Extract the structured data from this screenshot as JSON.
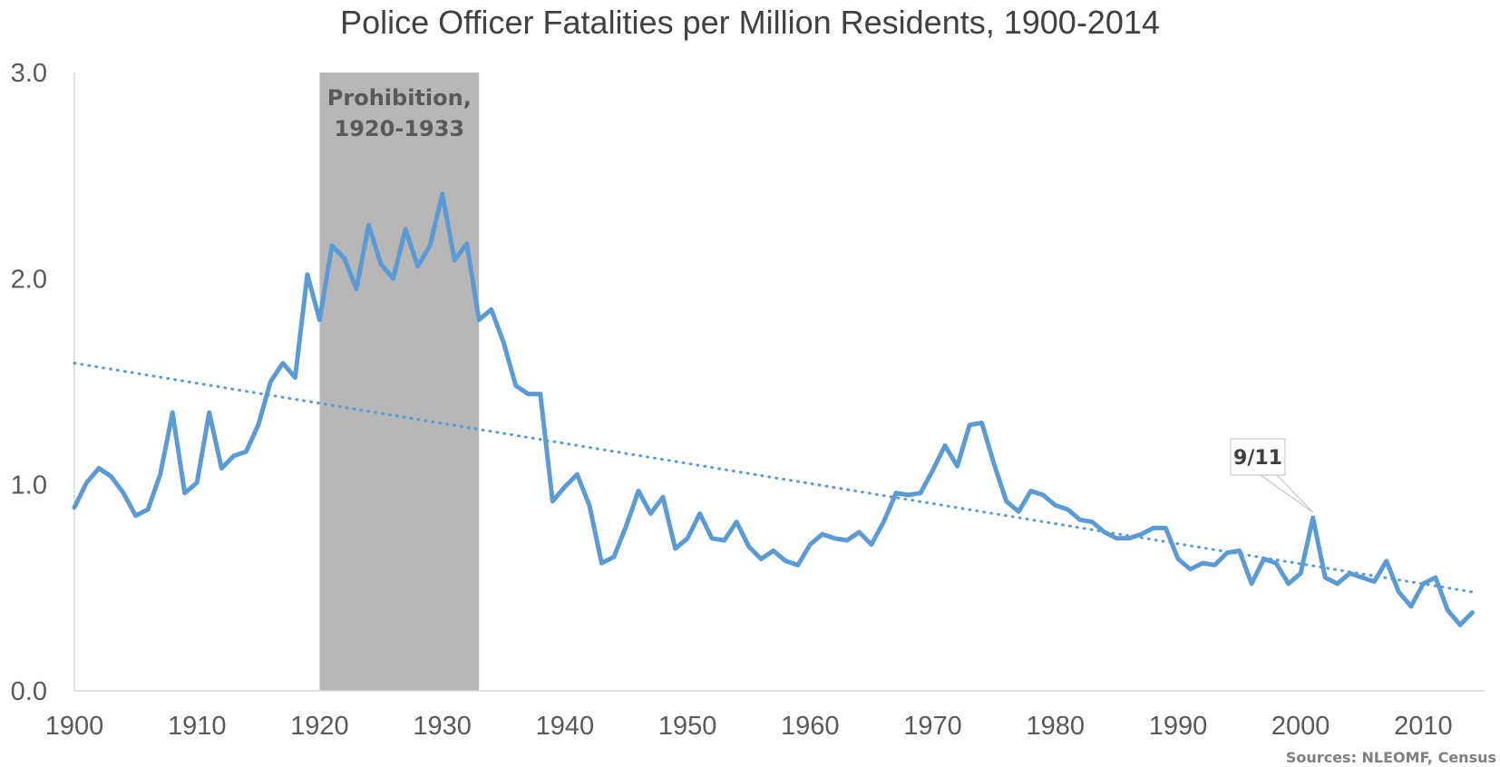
{
  "chart_data": {
    "type": "line",
    "title": "Police Officer Fatalities per Million Residents, 1900-2014",
    "xlabel": "",
    "ylabel": "",
    "xlim": [
      1900,
      2015
    ],
    "ylim": [
      0,
      3
    ],
    "x_ticks": [
      1900,
      1910,
      1920,
      1930,
      1940,
      1950,
      1960,
      1970,
      1980,
      1990,
      2000,
      2010
    ],
    "y_ticks": [
      {
        "value": 0,
        "label": "0.0"
      },
      {
        "value": 1,
        "label": "1.0"
      },
      {
        "value": 2,
        "label": "2.0"
      },
      {
        "value": 3,
        "label": "3.0"
      }
    ],
    "grid": false,
    "legend": "none",
    "series": [
      {
        "x": [
          1900,
          1901,
          1902,
          1903,
          1904,
          1905,
          1906,
          1907,
          1908,
          1909,
          1910,
          1911,
          1912,
          1913,
          1914,
          1915,
          1916,
          1917,
          1918,
          1919,
          1920,
          1921,
          1922,
          1923,
          1924,
          1925,
          1926,
          1927,
          1928,
          1929,
          1930,
          1931,
          1932,
          1933,
          1934,
          1935,
          1936,
          1937,
          1938,
          1939,
          1940,
          1941,
          1942,
          1943,
          1944,
          1945,
          1946,
          1947,
          1948,
          1949,
          1950,
          1951,
          1952,
          1953,
          1954,
          1955,
          1956,
          1957,
          1958,
          1959,
          1960,
          1961,
          1962,
          1963,
          1964,
          1965,
          1966,
          1967,
          1968,
          1969,
          1970,
          1971,
          1972,
          1973,
          1974,
          1975,
          1976,
          1977,
          1978,
          1979,
          1980,
          1981,
          1982,
          1983,
          1984,
          1985,
          1986,
          1987,
          1988,
          1989,
          1990,
          1991,
          1992,
          1993,
          1994,
          1995,
          1996,
          1997,
          1998,
          1999,
          2000,
          2001,
          2002,
          2003,
          2004,
          2005,
          2006,
          2007,
          2008,
          2009,
          2010,
          2011,
          2012,
          2013,
          2014
        ],
        "values": [
          0.89,
          1.01,
          1.08,
          1.04,
          0.96,
          0.85,
          0.88,
          1.05,
          1.35,
          0.96,
          1.01,
          1.35,
          1.08,
          1.14,
          1.16,
          1.29,
          1.5,
          1.59,
          1.52,
          2.02,
          1.8,
          2.16,
          2.1,
          1.95,
          2.26,
          2.07,
          2.0,
          2.24,
          2.06,
          2.16,
          2.41,
          2.09,
          2.17,
          1.8,
          1.85,
          1.69,
          1.48,
          1.44,
          1.44,
          0.92,
          0.99,
          1.05,
          0.9,
          0.62,
          0.65,
          0.8,
          0.97,
          0.86,
          0.94,
          0.69,
          0.74,
          0.86,
          0.74,
          0.73,
          0.82,
          0.7,
          0.64,
          0.68,
          0.63,
          0.61,
          0.71,
          0.76,
          0.74,
          0.73,
          0.77,
          0.71,
          0.82,
          0.96,
          0.95,
          0.96,
          1.07,
          1.19,
          1.09,
          1.29,
          1.3,
          1.1,
          0.92,
          0.87,
          0.97,
          0.95,
          0.9,
          0.88,
          0.83,
          0.82,
          0.77,
          0.74,
          0.74,
          0.76,
          0.79,
          0.79,
          0.64,
          0.59,
          0.62,
          0.61,
          0.67,
          0.68,
          0.52,
          0.64,
          0.62,
          0.52,
          0.57,
          0.84,
          0.55,
          0.52,
          0.57,
          0.55,
          0.53,
          0.63,
          0.48,
          0.41,
          0.52,
          0.55,
          0.39,
          0.32,
          0.38
        ],
        "color": "#5b9bd5"
      }
    ],
    "trendline": {
      "type": "linear",
      "style": "dotted",
      "color": "#5b9bd5",
      "start": {
        "x": 1900,
        "y": 1.59
      },
      "end": {
        "x": 2014,
        "y": 0.48
      }
    },
    "shaded_region": {
      "x_start": 1920,
      "x_end": 1933,
      "label_line1": "Prohibition,",
      "label_line2": "1920-1933",
      "color": "#b7b7b7"
    },
    "annotation": {
      "label": "9/11",
      "x": 2001,
      "y": 0.84
    },
    "source": "Sources: NLEOMF, Census"
  }
}
